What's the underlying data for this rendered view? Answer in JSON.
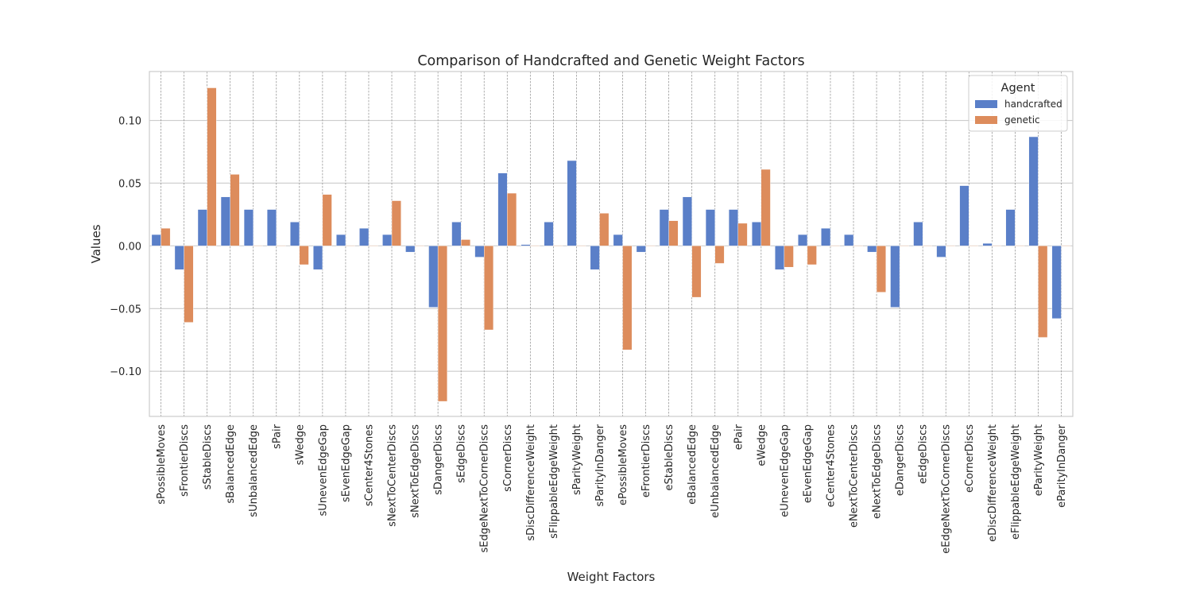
{
  "chart_data": {
    "type": "bar",
    "title": "Comparison of Handcrafted and Genetic Weight Factors",
    "xlabel": "Weight Factors",
    "ylabel": "Values",
    "ylim": [
      -0.136,
      0.139
    ],
    "yticks": [
      -0.1,
      -0.05,
      0.0,
      0.05,
      0.1
    ],
    "ytick_labels": [
      "−0.10",
      "−0.05",
      "0.00",
      "0.05",
      "0.10"
    ],
    "grid": true,
    "legend": {
      "title": "Agent",
      "position": "top-right"
    },
    "categories": [
      "sPossibleMoves",
      "sFrontierDiscs",
      "sStableDiscs",
      "sBalancedEdge",
      "sUnbalancedEdge",
      "sPair",
      "sWedge",
      "sUnevenEdgeGap",
      "sEvenEdgeGap",
      "sCenter4Stones",
      "sNextToCenterDiscs",
      "sNextToEdgeDiscs",
      "sDangerDiscs",
      "sEdgeDiscs",
      "sEdgeNextToCornerDiscs",
      "sCornerDiscs",
      "sDiscDifferenceWeight",
      "sFlippableEdgeWeight",
      "sParityWeight",
      "sParityInDanger",
      "ePossibleMoves",
      "eFrontierDiscs",
      "eStableDiscs",
      "eBalancedEdge",
      "eUnbalancedEdge",
      "ePair",
      "eWedge",
      "eUnevenEdgeGap",
      "eEvenEdgeGap",
      "eCenter4Stones",
      "eNextToCenterDiscs",
      "eNextToEdgeDiscs",
      "eDangerDiscs",
      "eEdgeDiscs",
      "eEdgeNextToCornerDiscs",
      "eCornerDiscs",
      "eDiscDifferenceWeight",
      "eFlippableEdgeWeight",
      "eParityWeight",
      "eParityInDanger"
    ],
    "series": [
      {
        "name": "handcrafted",
        "color": "#5a7fc8",
        "values": [
          0.009,
          -0.019,
          0.029,
          0.039,
          0.029,
          0.029,
          0.019,
          -0.019,
          0.009,
          0.014,
          0.009,
          -0.005,
          -0.049,
          0.019,
          -0.009,
          0.058,
          0.001,
          0.019,
          0.068,
          -0.019,
          0.009,
          -0.005,
          0.029,
          0.039,
          0.029,
          0.029,
          0.019,
          -0.019,
          0.009,
          0.014,
          0.009,
          -0.005,
          -0.049,
          0.019,
          -0.009,
          0.048,
          0.002,
          0.029,
          0.087,
          -0.058
        ]
      },
      {
        "name": "genetic",
        "color": "#dd8c5c",
        "values": [
          0.014,
          -0.061,
          0.126,
          0.057,
          0.0,
          0.0,
          -0.015,
          0.041,
          0.0,
          0.0,
          0.036,
          0.0,
          -0.124,
          0.005,
          -0.067,
          0.042,
          0.0,
          0.0,
          0.0,
          0.026,
          -0.083,
          0.0,
          0.02,
          -0.041,
          -0.014,
          0.018,
          0.061,
          -0.017,
          -0.015,
          0.0,
          0.0,
          -0.037,
          0.0,
          0.0,
          0.0,
          0.0,
          0.0,
          0.0,
          -0.073,
          0.0
        ]
      }
    ]
  }
}
